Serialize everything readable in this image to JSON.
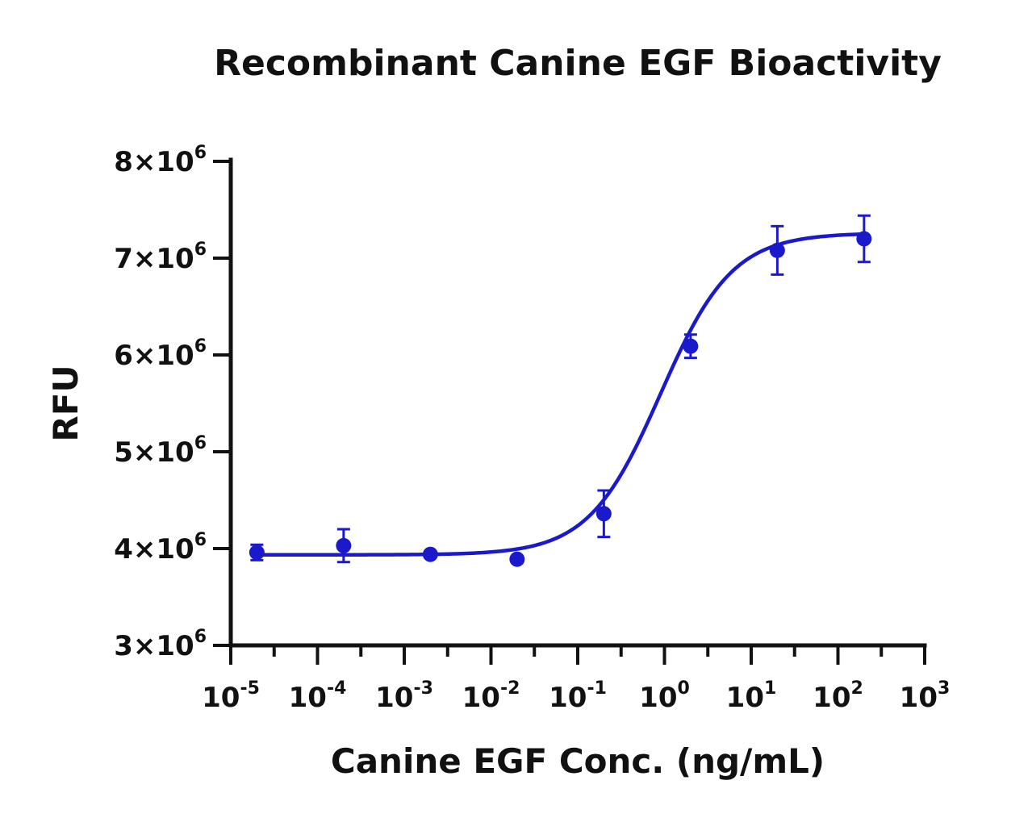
{
  "chart_data": {
    "type": "scatter",
    "title": "Recombinant Canine EGF Bioactivity",
    "xlabel": "Canine EGF Conc. (ng/mL)",
    "ylabel": "RFU",
    "x_scale": "log",
    "xlim": [
      1e-05,
      1000
    ],
    "ylim": [
      3000000,
      8000000
    ],
    "x_tick_values": [
      1e-05,
      0.0001,
      0.001,
      0.01,
      0.1,
      1,
      10,
      100,
      1000
    ],
    "x_tick_labels": [
      {
        "base": "10",
        "exp": "-5"
      },
      {
        "base": "10",
        "exp": "-4"
      },
      {
        "base": "10",
        "exp": "-3"
      },
      {
        "base": "10",
        "exp": "-2"
      },
      {
        "base": "10",
        "exp": "-1"
      },
      {
        "base": "10",
        "exp": "0"
      },
      {
        "base": "10",
        "exp": "1"
      },
      {
        "base": "10",
        "exp": "2"
      },
      {
        "base": "10",
        "exp": "3"
      }
    ],
    "y_tick_values": [
      3000000,
      4000000,
      5000000,
      6000000,
      7000000,
      8000000
    ],
    "y_tick_labels": [
      {
        "base": "3×10",
        "exp": "6"
      },
      {
        "base": "4×10",
        "exp": "6"
      },
      {
        "base": "5×10",
        "exp": "6"
      },
      {
        "base": "6×10",
        "exp": "6"
      },
      {
        "base": "7×10",
        "exp": "6"
      },
      {
        "base": "8×10",
        "exp": "6"
      }
    ],
    "grid": false,
    "color": "#1a1acc",
    "points": [
      {
        "x": 2e-05,
        "y": 3960000,
        "err": 80000
      },
      {
        "x": 0.0002,
        "y": 4030000,
        "err": 170000
      },
      {
        "x": 0.002,
        "y": 3940000,
        "err": 20000
      },
      {
        "x": 0.02,
        "y": 3890000,
        "err": 10000
      },
      {
        "x": 0.2,
        "y": 4360000,
        "err": 240000
      },
      {
        "x": 2,
        "y": 6090000,
        "err": 120000
      },
      {
        "x": 20,
        "y": 7080000,
        "err": 250000
      },
      {
        "x": 200,
        "y": 7200000,
        "err": 240000
      }
    ],
    "fit": {
      "model": "4PL",
      "bottom": 3935000,
      "top": 7260000,
      "ec50": 0.9,
      "hill": 1.05
    }
  }
}
